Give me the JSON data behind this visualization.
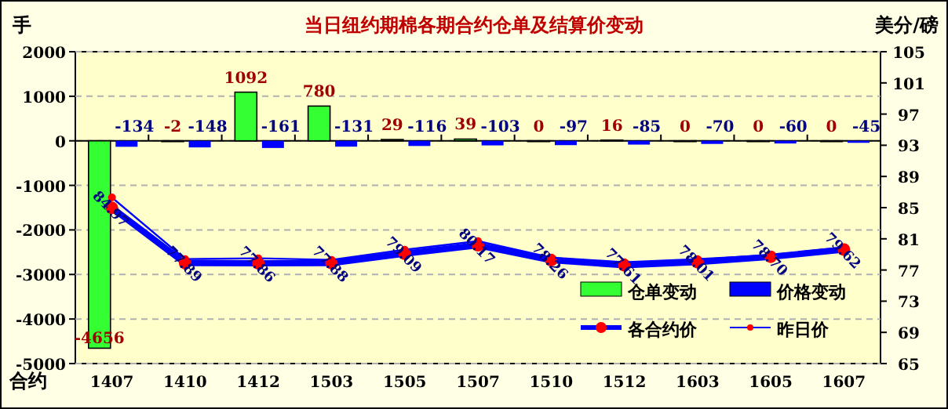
{
  "chart_data": {
    "type": "bar",
    "title": "当日纽约期棉各期合约仓单及结算价变动",
    "ylabel": "手",
    "y2label": "美分/磅",
    "xlabel": "合约",
    "categories": [
      "1407",
      "1410",
      "1412",
      "1503",
      "1505",
      "1507",
      "1510",
      "1512",
      "1603",
      "1605",
      "1607"
    ],
    "series": [
      {
        "name": "仓单变动",
        "color": "#33ff33",
        "values": [
          -4656,
          -2,
          1092,
          780,
          29,
          39,
          0,
          16,
          0,
          0,
          0
        ],
        "value_labels": [
          "-4656",
          "-2",
          "1092",
          "780",
          "29",
          "39",
          "0",
          "16",
          "0",
          "0",
          "0"
        ]
      },
      {
        "name": "价格变动",
        "color": "#0000ff",
        "values": [
          -134,
          -148,
          -161,
          -131,
          -116,
          -103,
          -97,
          -85,
          -70,
          -60,
          -45
        ],
        "value_labels": [
          "-134",
          "-148",
          "-161",
          "-131",
          "-116",
          "-103",
          "-97",
          "-85",
          "-70",
          "-60",
          "-45"
        ]
      },
      {
        "name": "各合约价",
        "type": "line",
        "axis": "y2",
        "color": "#0000ff",
        "colors": [
          "#ff0000",
          "#ff0000",
          "#ff0000",
          "#ff0000",
          "#ff0000",
          "#ff0000",
          "#ff0000",
          "#ff0000",
          "#ff0000",
          "#ff0000",
          "#ff0000"
        ],
        "values": [
          84.97,
          77.89,
          77.86,
          77.88,
          79.09,
          80.17,
          78.26,
          77.61,
          78.01,
          78.7,
          79.62
        ],
        "value_labels": [
          "84.97",
          "77.89",
          "77.86",
          "77.88",
          "79.09",
          "80.17",
          "78.26",
          "77.61",
          "78.01",
          "78.70",
          "79.62"
        ]
      },
      {
        "name": "昨日价",
        "type": "line",
        "axis": "y2",
        "color": "#0000ff",
        "colors": [
          "#ff0000",
          "#ff0000",
          "#ff0000",
          "#ff0000",
          "#ff0000",
          "#ff0000",
          "#ff0000",
          "#ff0000",
          "#ff0000",
          "#ff0000",
          "#ff0000"
        ],
        "values": [
          86.3,
          78.4,
          78.5,
          78.3,
          79.6,
          80.7,
          78.6,
          78.0,
          78.4,
          78.9,
          79.9
        ]
      }
    ],
    "ylim": [
      -5000,
      2000
    ],
    "yticks": [
      -5000,
      -4000,
      -3000,
      -2000,
      -1000,
      0,
      1000,
      2000
    ],
    "y2lim": [
      65,
      105
    ],
    "y2ticks": [
      65,
      69,
      73,
      77,
      81,
      85,
      89,
      93,
      97,
      101,
      105
    ],
    "grid": "y",
    "legend": "bottom right",
    "marker": "circle"
  }
}
